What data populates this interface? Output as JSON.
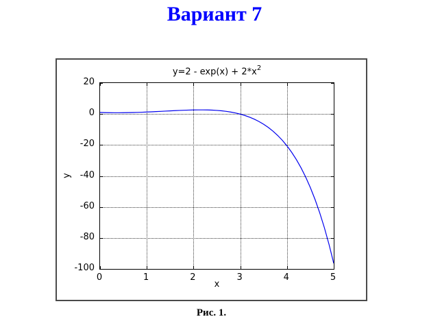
{
  "page": {
    "title": "Вариант 7",
    "title_color": "#0000ff",
    "caption": "Рис. 1."
  },
  "chart_data": {
    "type": "line",
    "title": "y=2 - exp(x) + 2*x",
    "title_superscript": "2",
    "xlabel": "x",
    "ylabel": "y",
    "xlim": [
      0,
      5
    ],
    "ylim": [
      -100,
      20
    ],
    "xticks": [
      0,
      1,
      2,
      3,
      4,
      5
    ],
    "yticks": [
      20,
      0,
      -20,
      -40,
      -60,
      -80,
      -100
    ],
    "grid": true,
    "line_color": "#0000ee",
    "x": [
      0.0,
      0.1,
      0.2,
      0.3,
      0.4,
      0.5,
      0.6,
      0.7,
      0.8,
      0.9,
      1.0,
      1.1,
      1.2,
      1.3,
      1.4,
      1.5,
      1.6,
      1.7,
      1.8,
      1.9,
      2.0,
      2.1,
      2.2,
      2.3,
      2.4,
      2.5,
      2.6,
      2.7,
      2.8,
      2.9,
      3.0,
      3.1,
      3.2,
      3.3,
      3.4,
      3.5,
      3.6,
      3.7,
      3.8,
      3.9,
      4.0,
      4.1,
      4.2,
      4.3,
      4.4,
      4.5,
      4.6,
      4.7,
      4.8,
      4.9,
      5.0
    ],
    "y": [
      1.0,
      0.915,
      0.859,
      0.83,
      0.828,
      0.851,
      0.898,
      0.966,
      1.054,
      1.16,
      1.282,
      1.416,
      1.56,
      1.711,
      1.865,
      2.018,
      2.167,
      2.306,
      2.43,
      2.534,
      2.611,
      2.654,
      2.655,
      2.606,
      2.497,
      2.318,
      2.056,
      1.7,
      1.235,
      0.646,
      -0.086,
      -0.978,
      -2.053,
      -3.333,
      -4.844,
      -6.615,
      -8.678,
      -11.067,
      -13.821,
      -16.982,
      -20.598,
      -24.72,
      -29.406,
      -34.72,
      -40.731,
      -47.517,
      -55.164,
      -63.767,
      -73.43,
      -84.27,
      -96.413
    ]
  }
}
